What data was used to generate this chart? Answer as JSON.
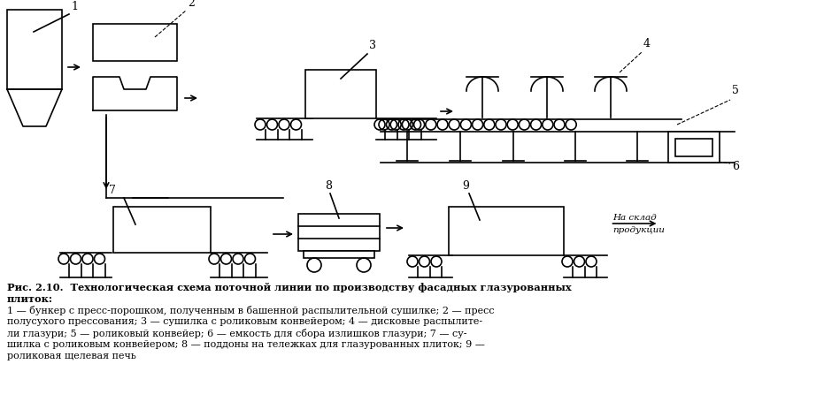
{
  "bg_color": "#ffffff",
  "lc": "#000000",
  "caption_bold1": "Рис. 2.10.  Технологическая схема поточной линии по производству фасадных глазурованных",
  "caption_bold2": "плиток:",
  "caption_text": "1 — бункер с пресс-порошком, полученным в башенной распылительной сушилке; 2 — пресс\nполусухого прессования; 3 — сушилка с роликовым конвейером; 4 — дисковые распылите-\nли глазури; 5 — роликовый конвейер; 6 — емкость для сбора излишков глазури; 7 — су-\nшилка с роликовым конвейером; 8 — поддоны на тележках для глазурованных плиток; 9 —\nроликовая щелевая печь"
}
